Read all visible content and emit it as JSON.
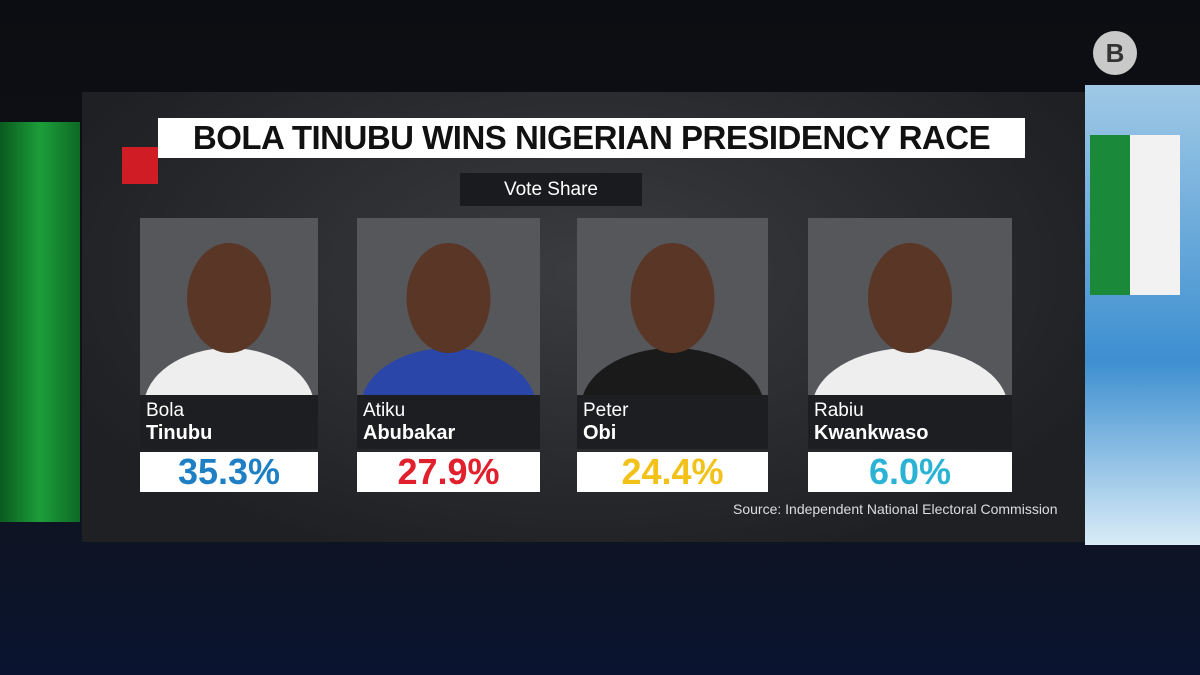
{
  "logo": "B",
  "header": {
    "title": "BOLA TINUBU WINS NIGERIAN PRESIDENCY RACE",
    "subtitle": "Vote Share"
  },
  "candidates": [
    {
      "first": "Bola",
      "last": "Tinubu",
      "share": "35.3%",
      "color": "#1f7fc4"
    },
    {
      "first": "Atiku",
      "last": "Abubakar",
      "share": "27.9%",
      "color": "#e0202c"
    },
    {
      "first": "Peter",
      "last": "Obi",
      "share": "24.4%",
      "color": "#f2c21a"
    },
    {
      "first": "Rabiu",
      "last": "Kwankwaso",
      "share": "6.0%",
      "color": "#2bb3d6"
    }
  ],
  "source": "Source: Independent National Electoral Commission"
}
